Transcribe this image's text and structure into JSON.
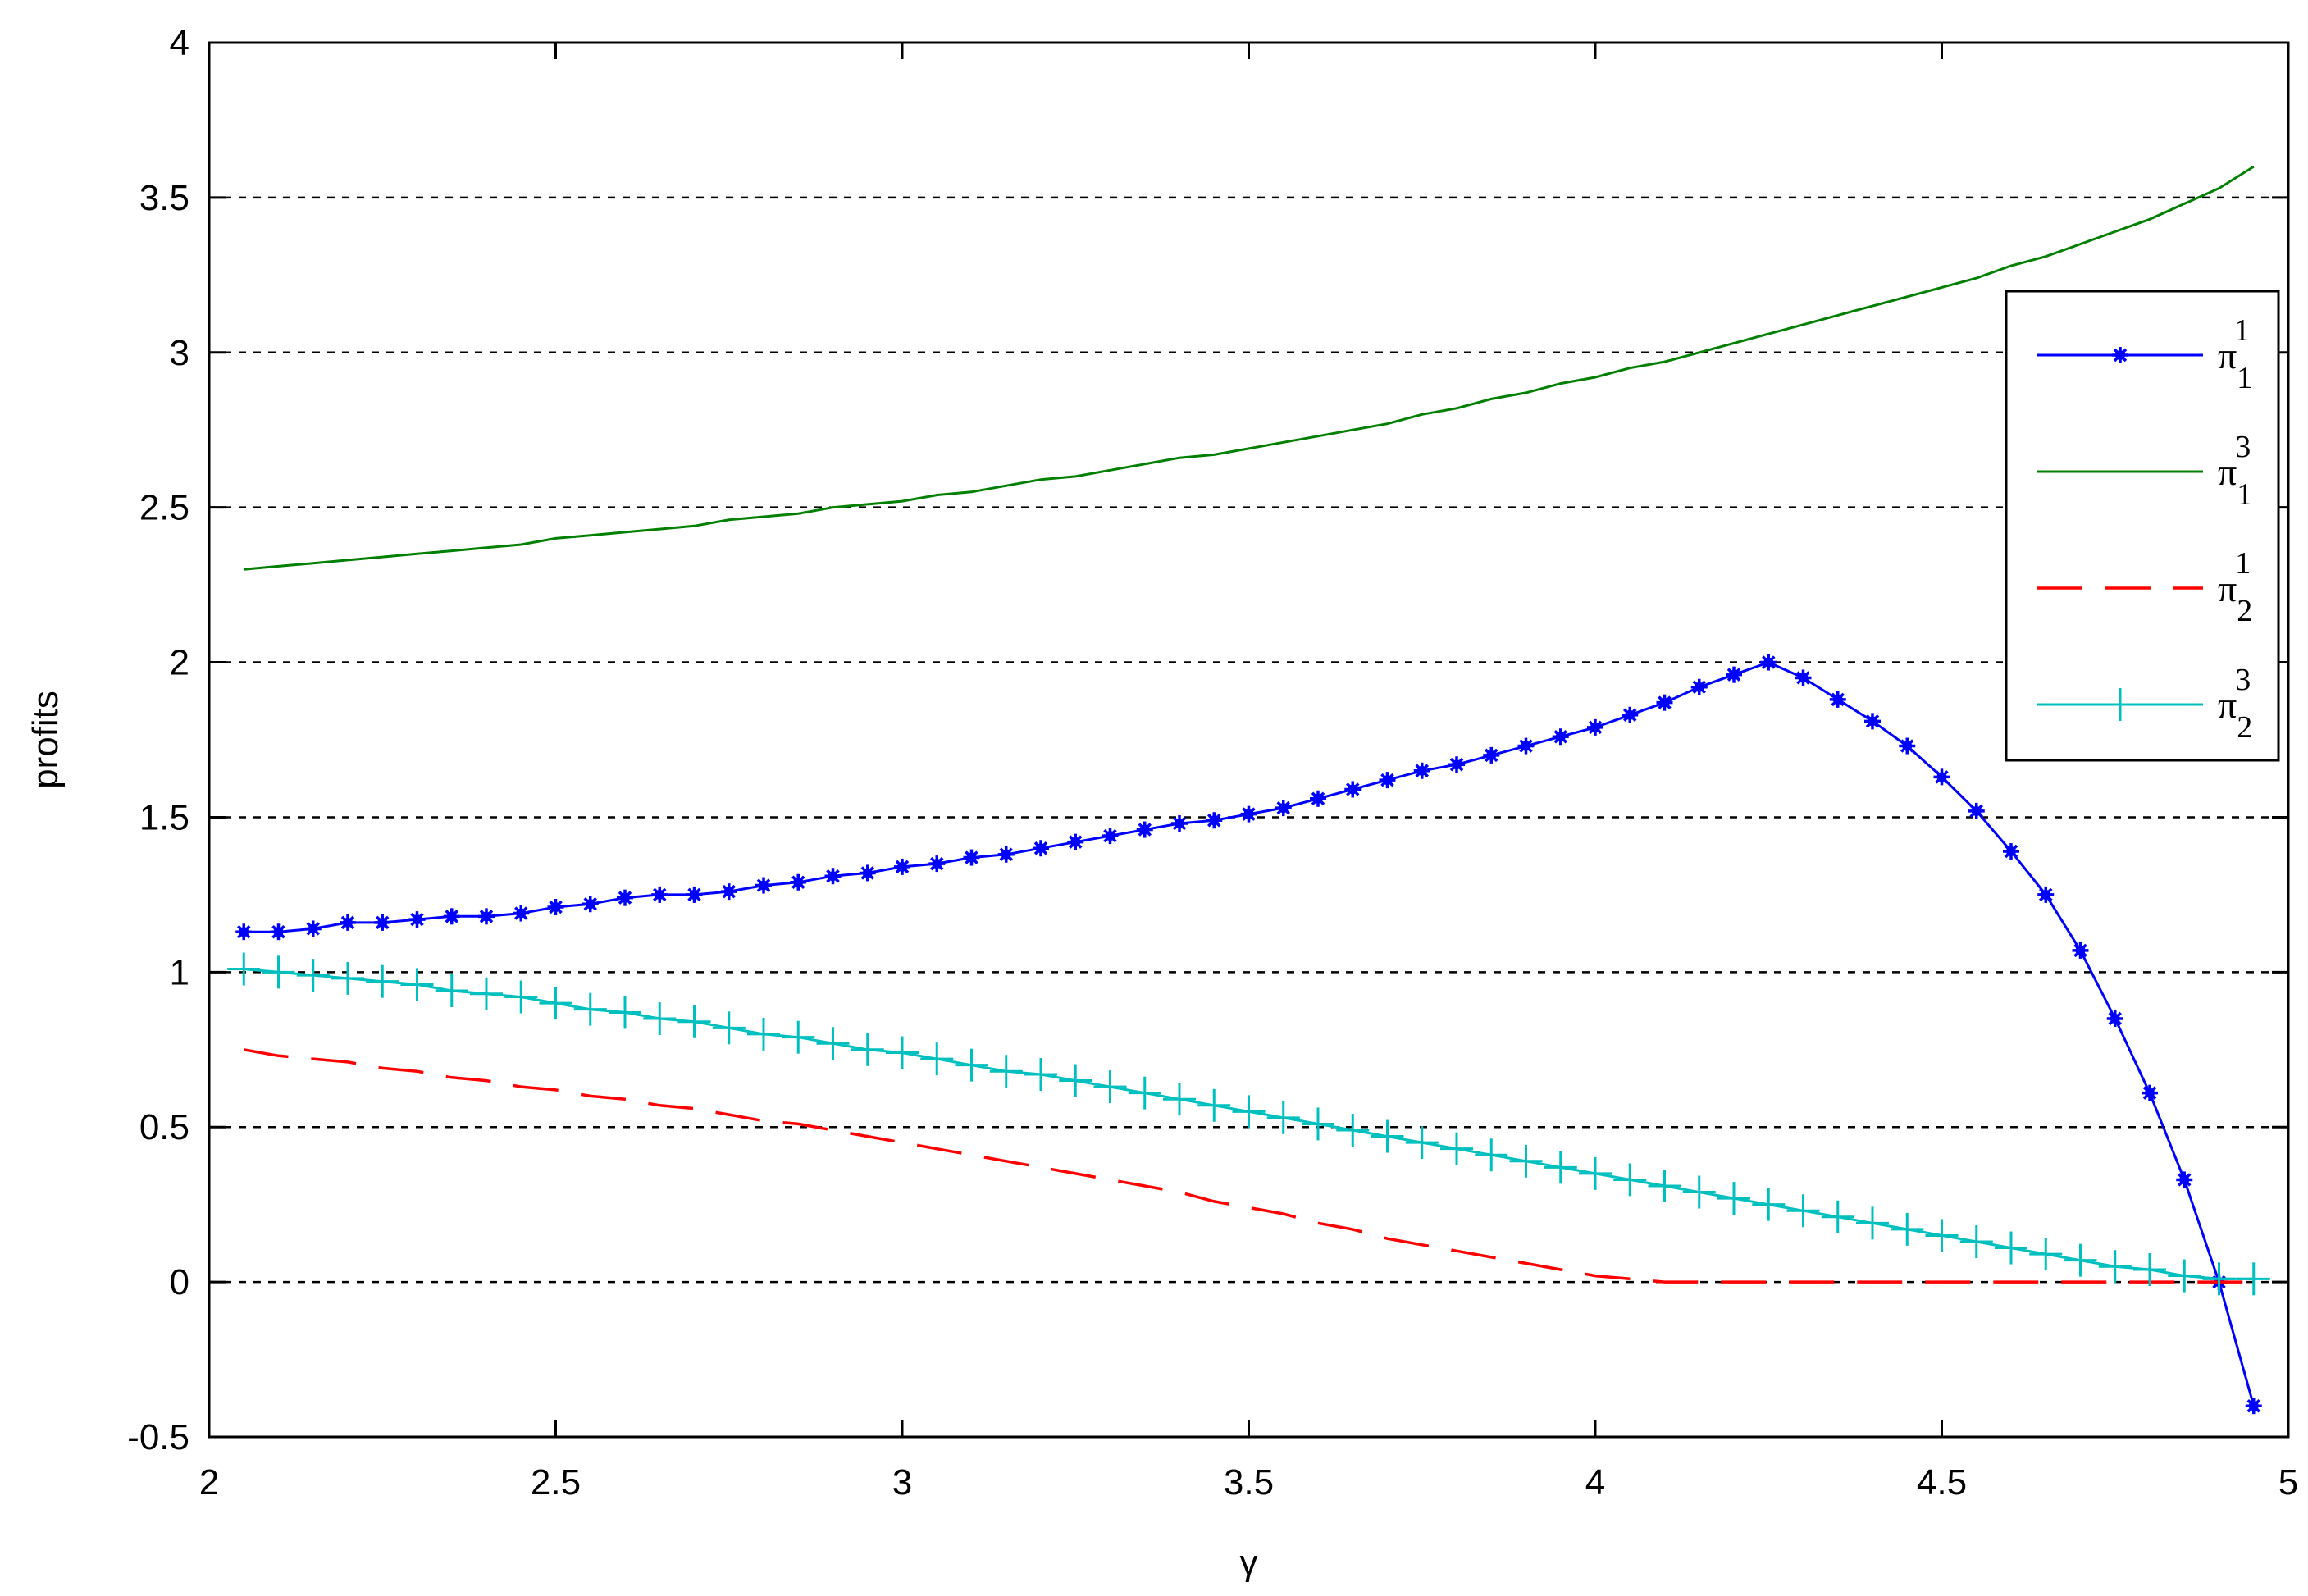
{
  "chart_data": {
    "type": "line",
    "title": "",
    "xlabel": "γ",
    "ylabel": "profits",
    "xlim": [
      2,
      5
    ],
    "ylim": [
      -0.5,
      4
    ],
    "xticks": [
      "2",
      "2.5",
      "3",
      "3.5",
      "4",
      "4.5",
      "5"
    ],
    "yticks": [
      "-0.5",
      "0",
      "0.5",
      "1",
      "1.5",
      "2",
      "2.5",
      "3",
      "3.5",
      "4"
    ],
    "grid": "horizontal dashed",
    "legend_position": "upper right",
    "x": [
      2.05,
      2.1,
      2.15,
      2.2,
      2.25,
      2.3,
      2.35,
      2.4,
      2.45,
      2.5,
      2.55,
      2.6,
      2.65,
      2.7,
      2.75,
      2.8,
      2.85,
      2.9,
      2.95,
      3.0,
      3.05,
      3.1,
      3.15,
      3.2,
      3.25,
      3.3,
      3.35,
      3.4,
      3.45,
      3.5,
      3.55,
      3.6,
      3.65,
      3.7,
      3.75,
      3.8,
      3.85,
      3.9,
      3.95,
      4.0,
      4.05,
      4.1,
      4.15,
      4.2,
      4.25,
      4.3,
      4.35,
      4.4,
      4.45,
      4.5,
      4.55,
      4.6,
      4.65,
      4.7,
      4.75,
      4.8,
      4.85,
      4.9,
      4.95
    ],
    "series": [
      {
        "name": "π",
        "sup": "1",
        "sub": "1",
        "color": "#0000ff",
        "style": "solid-star",
        "values": [
          1.13,
          1.13,
          1.14,
          1.16,
          1.16,
          1.17,
          1.18,
          1.18,
          1.19,
          1.21,
          1.22,
          1.24,
          1.25,
          1.25,
          1.26,
          1.28,
          1.29,
          1.31,
          1.32,
          1.34,
          1.35,
          1.37,
          1.38,
          1.4,
          1.42,
          1.44,
          1.46,
          1.48,
          1.49,
          1.51,
          1.53,
          1.56,
          1.59,
          1.62,
          1.65,
          1.67,
          1.7,
          1.73,
          1.76,
          1.79,
          1.83,
          1.87,
          1.92,
          1.96,
          2.0,
          1.95,
          1.88,
          1.81,
          1.73,
          1.63,
          1.52,
          1.39,
          1.25,
          1.07,
          0.85,
          0.61,
          0.33,
          0.0,
          -0.4
        ]
      },
      {
        "name": "π",
        "sup": "3",
        "sub": "1",
        "color": "#007f00",
        "style": "solid",
        "values": [
          2.3,
          2.31,
          2.32,
          2.33,
          2.34,
          2.35,
          2.36,
          2.37,
          2.38,
          2.4,
          2.41,
          2.42,
          2.43,
          2.44,
          2.46,
          2.47,
          2.48,
          2.5,
          2.51,
          2.52,
          2.54,
          2.55,
          2.57,
          2.59,
          2.6,
          2.62,
          2.64,
          2.66,
          2.67,
          2.69,
          2.71,
          2.73,
          2.75,
          2.77,
          2.8,
          2.82,
          2.85,
          2.87,
          2.9,
          2.92,
          2.95,
          2.97,
          3.0,
          3.03,
          3.06,
          3.09,
          3.12,
          3.15,
          3.18,
          3.21,
          3.24,
          3.28,
          3.31,
          3.35,
          3.39,
          3.43,
          3.48,
          3.53,
          3.6
        ]
      },
      {
        "name": "π",
        "sup": "1",
        "sub": "2",
        "color": "#ff0000",
        "style": "dashed",
        "values": [
          0.75,
          0.73,
          0.72,
          0.71,
          0.69,
          0.68,
          0.66,
          0.65,
          0.63,
          0.62,
          0.6,
          0.59,
          0.57,
          0.56,
          0.54,
          0.52,
          0.51,
          0.49,
          0.47,
          0.45,
          0.43,
          0.41,
          0.39,
          0.37,
          0.35,
          0.33,
          0.31,
          0.29,
          0.26,
          0.24,
          0.22,
          0.19,
          0.17,
          0.14,
          0.12,
          0.1,
          0.08,
          0.06,
          0.04,
          0.02,
          0.01,
          0.0,
          0.0,
          0.0,
          0.0,
          0.0,
          0.0,
          0.0,
          0.0,
          0.0,
          0.0,
          0.0,
          0.0,
          0.0,
          0.0,
          0.0,
          0.0,
          0.0,
          0.0
        ]
      },
      {
        "name": "π",
        "sup": "3",
        "sub": "2",
        "color": "#00bfbf",
        "style": "solid-plus",
        "values": [
          1.01,
          1.0,
          0.99,
          0.98,
          0.97,
          0.96,
          0.94,
          0.93,
          0.92,
          0.9,
          0.88,
          0.87,
          0.85,
          0.84,
          0.82,
          0.8,
          0.79,
          0.77,
          0.75,
          0.74,
          0.72,
          0.7,
          0.68,
          0.67,
          0.65,
          0.63,
          0.61,
          0.59,
          0.57,
          0.55,
          0.53,
          0.51,
          0.49,
          0.47,
          0.45,
          0.43,
          0.41,
          0.39,
          0.37,
          0.35,
          0.33,
          0.31,
          0.29,
          0.27,
          0.25,
          0.23,
          0.21,
          0.19,
          0.17,
          0.15,
          0.13,
          0.11,
          0.09,
          0.07,
          0.05,
          0.04,
          0.02,
          0.01,
          0.01
        ]
      }
    ]
  }
}
